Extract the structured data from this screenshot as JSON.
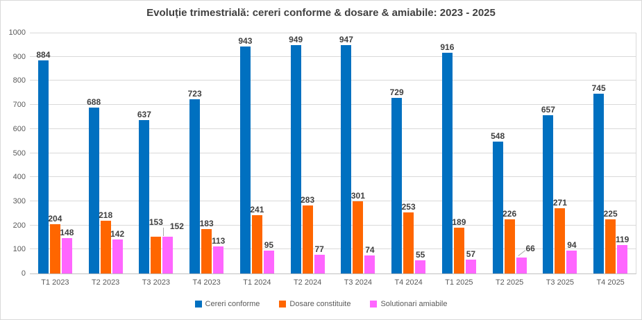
{
  "chart_data": {
    "type": "bar",
    "title": "Evoluție trimestrială: cereri conforme & dosare & amiabile: 2023 - 2025",
    "categories": [
      "T1 2023",
      "T2 2023",
      "T3 2023",
      "T4 2023",
      "T1 2024",
      "T2 2024",
      "T3 2024",
      "T4 2024",
      "T1 2025",
      "T2 2025",
      "T3 2025",
      "T4 2025"
    ],
    "series": [
      {
        "name": "Cereri conforme",
        "color": "#0070C0",
        "values": [
          884,
          688,
          637,
          723,
          943,
          949,
          947,
          729,
          916,
          548,
          657,
          745
        ]
      },
      {
        "name": "Dosare constituite",
        "color": "#FF6600",
        "values": [
          204,
          218,
          153,
          183,
          241,
          283,
          301,
          253,
          189,
          226,
          271,
          225
        ]
      },
      {
        "name": "Solutionari amiabile",
        "color": "#FF66FF",
        "values": [
          148,
          142,
          152,
          113,
          95,
          77,
          74,
          55,
          57,
          66,
          94,
          119
        ]
      }
    ],
    "ylim": [
      0,
      1000
    ],
    "ytick_step": 100,
    "grid": true,
    "legend_position": "bottom",
    "data_labels": true
  },
  "styles": {
    "grid_color": "#D9D9D9",
    "axis_line_color": "#BFBFBF",
    "axis_text_color": "#595959",
    "data_label_color": "#404040",
    "title_color": "#404040",
    "border_color": "#D9D9D9",
    "leader_line_color": "#A6A6A6",
    "background": "#FFFFFF"
  }
}
